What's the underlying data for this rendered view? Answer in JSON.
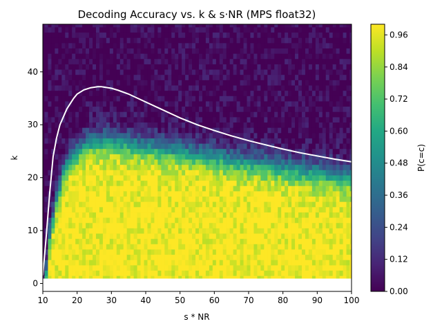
{
  "chart_data": {
    "type": "heatmap",
    "title": "Decoding Accuracy vs. k & s·NR (MPS float32)",
    "xlabel": "s * NR",
    "ylabel": "k",
    "xlim": [
      10,
      100
    ],
    "ylim": [
      -1.5,
      49
    ],
    "x_ticks": [
      10,
      20,
      30,
      40,
      50,
      60,
      70,
      80,
      90,
      100
    ],
    "y_ticks": [
      0,
      10,
      20,
      30,
      40
    ],
    "colorbar": {
      "label": "P(c=c)",
      "range": [
        0,
        1
      ],
      "ticks": [
        "0.00",
        "0.12",
        "0.24",
        "0.36",
        "0.48",
        "0.60",
        "0.72",
        "0.84",
        "0.96"
      ],
      "colormap": "viridis"
    },
    "data_k_range": [
      1,
      49
    ],
    "accuracy_field": "P(c=c) ≈ 1 for k below the transition boundary, falling to 0 above it",
    "transition_boundary": {
      "x": [
        11,
        12,
        14,
        16,
        18,
        20,
        22,
        25,
        30,
        40,
        50,
        60,
        70,
        80,
        90,
        100
      ],
      "k": [
        2,
        9,
        16,
        21,
        24,
        25,
        26,
        27,
        27,
        26,
        25,
        24,
        23,
        22,
        21,
        20
      ]
    },
    "series": [
      {
        "type": "line",
        "color": "#ffffff",
        "x": [
          10,
          11,
          12,
          13,
          14,
          15,
          16,
          17,
          18,
          19,
          20,
          21,
          22,
          24,
          26,
          27,
          28,
          30,
          32,
          35,
          40,
          45,
          50,
          55,
          60,
          65,
          70,
          75,
          80,
          85,
          90,
          95,
          100
        ],
        "y": [
          1.5,
          9,
          17,
          24,
          27.5,
          30,
          31.5,
          33,
          34,
          35,
          35.8,
          36.2,
          36.6,
          37,
          37.2,
          37.2,
          37.1,
          36.9,
          36.5,
          35.8,
          34.3,
          32.8,
          31.3,
          30,
          28.9,
          27.9,
          27,
          26.2,
          25.4,
          24.7,
          24.1,
          23.5,
          23
        ]
      }
    ]
  }
}
